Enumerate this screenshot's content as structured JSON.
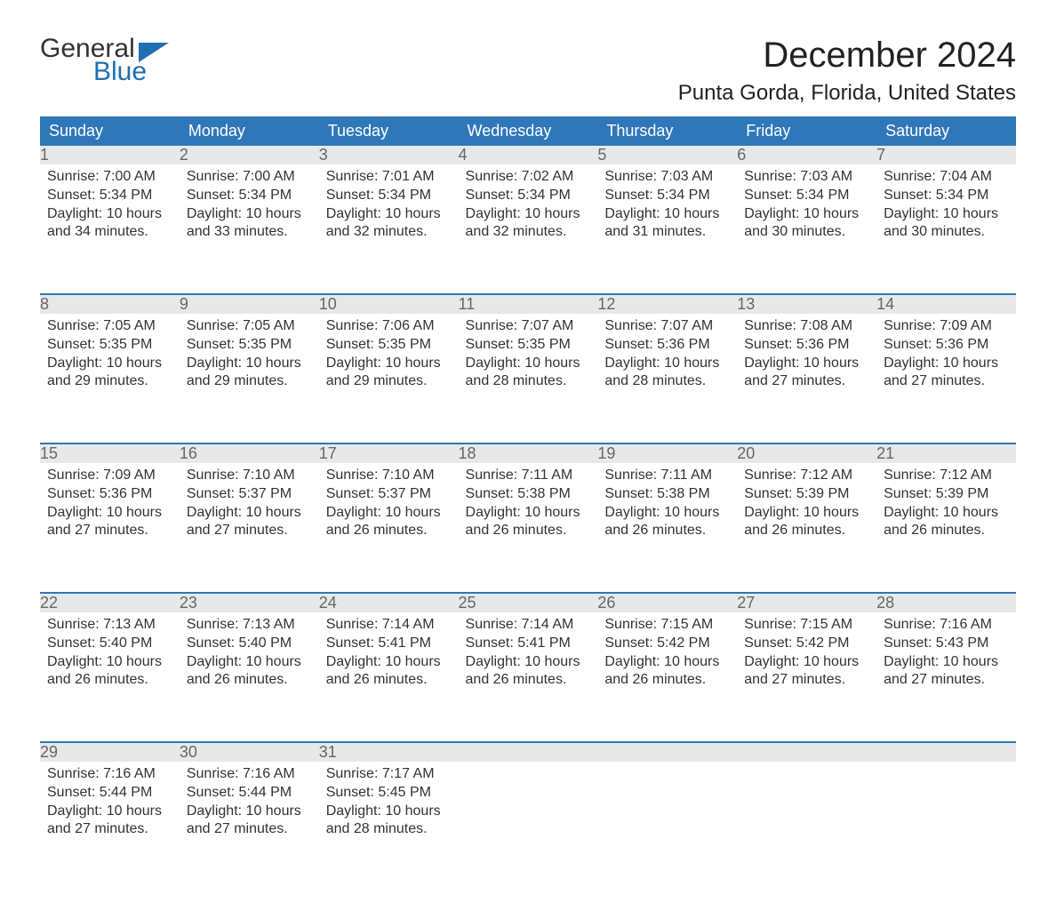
{
  "logo": {
    "word1": "General",
    "word2": "Blue",
    "flag_color": "#1f6fb2"
  },
  "title": "December 2024",
  "location": "Punta Gorda, Florida, United States",
  "colors": {
    "header_bg": "#2f77b9",
    "header_text": "#ffffff",
    "daynum_bg": "#e8e8e8",
    "daynum_text": "#666666",
    "body_text": "#333333",
    "page_bg": "#ffffff",
    "rule": "#2f77b9"
  },
  "typography": {
    "month_title_pt": 40,
    "location_pt": 24,
    "weekday_pt": 18,
    "daynum_pt": 18,
    "body_pt": 16,
    "logo_pt": 30
  },
  "weekdays": [
    "Sunday",
    "Monday",
    "Tuesday",
    "Wednesday",
    "Thursday",
    "Friday",
    "Saturday"
  ],
  "weeks": [
    [
      {
        "n": "1",
        "sunrise": "Sunrise: 7:00 AM",
        "sunset": "Sunset: 5:34 PM",
        "dl1": "Daylight: 10 hours",
        "dl2": "and 34 minutes."
      },
      {
        "n": "2",
        "sunrise": "Sunrise: 7:00 AM",
        "sunset": "Sunset: 5:34 PM",
        "dl1": "Daylight: 10 hours",
        "dl2": "and 33 minutes."
      },
      {
        "n": "3",
        "sunrise": "Sunrise: 7:01 AM",
        "sunset": "Sunset: 5:34 PM",
        "dl1": "Daylight: 10 hours",
        "dl2": "and 32 minutes."
      },
      {
        "n": "4",
        "sunrise": "Sunrise: 7:02 AM",
        "sunset": "Sunset: 5:34 PM",
        "dl1": "Daylight: 10 hours",
        "dl2": "and 32 minutes."
      },
      {
        "n": "5",
        "sunrise": "Sunrise: 7:03 AM",
        "sunset": "Sunset: 5:34 PM",
        "dl1": "Daylight: 10 hours",
        "dl2": "and 31 minutes."
      },
      {
        "n": "6",
        "sunrise": "Sunrise: 7:03 AM",
        "sunset": "Sunset: 5:34 PM",
        "dl1": "Daylight: 10 hours",
        "dl2": "and 30 minutes."
      },
      {
        "n": "7",
        "sunrise": "Sunrise: 7:04 AM",
        "sunset": "Sunset: 5:34 PM",
        "dl1": "Daylight: 10 hours",
        "dl2": "and 30 minutes."
      }
    ],
    [
      {
        "n": "8",
        "sunrise": "Sunrise: 7:05 AM",
        "sunset": "Sunset: 5:35 PM",
        "dl1": "Daylight: 10 hours",
        "dl2": "and 29 minutes."
      },
      {
        "n": "9",
        "sunrise": "Sunrise: 7:05 AM",
        "sunset": "Sunset: 5:35 PM",
        "dl1": "Daylight: 10 hours",
        "dl2": "and 29 minutes."
      },
      {
        "n": "10",
        "sunrise": "Sunrise: 7:06 AM",
        "sunset": "Sunset: 5:35 PM",
        "dl1": "Daylight: 10 hours",
        "dl2": "and 29 minutes."
      },
      {
        "n": "11",
        "sunrise": "Sunrise: 7:07 AM",
        "sunset": "Sunset: 5:35 PM",
        "dl1": "Daylight: 10 hours",
        "dl2": "and 28 minutes."
      },
      {
        "n": "12",
        "sunrise": "Sunrise: 7:07 AM",
        "sunset": "Sunset: 5:36 PM",
        "dl1": "Daylight: 10 hours",
        "dl2": "and 28 minutes."
      },
      {
        "n": "13",
        "sunrise": "Sunrise: 7:08 AM",
        "sunset": "Sunset: 5:36 PM",
        "dl1": "Daylight: 10 hours",
        "dl2": "and 27 minutes."
      },
      {
        "n": "14",
        "sunrise": "Sunrise: 7:09 AM",
        "sunset": "Sunset: 5:36 PM",
        "dl1": "Daylight: 10 hours",
        "dl2": "and 27 minutes."
      }
    ],
    [
      {
        "n": "15",
        "sunrise": "Sunrise: 7:09 AM",
        "sunset": "Sunset: 5:36 PM",
        "dl1": "Daylight: 10 hours",
        "dl2": "and 27 minutes."
      },
      {
        "n": "16",
        "sunrise": "Sunrise: 7:10 AM",
        "sunset": "Sunset: 5:37 PM",
        "dl1": "Daylight: 10 hours",
        "dl2": "and 27 minutes."
      },
      {
        "n": "17",
        "sunrise": "Sunrise: 7:10 AM",
        "sunset": "Sunset: 5:37 PM",
        "dl1": "Daylight: 10 hours",
        "dl2": "and 26 minutes."
      },
      {
        "n": "18",
        "sunrise": "Sunrise: 7:11 AM",
        "sunset": "Sunset: 5:38 PM",
        "dl1": "Daylight: 10 hours",
        "dl2": "and 26 minutes."
      },
      {
        "n": "19",
        "sunrise": "Sunrise: 7:11 AM",
        "sunset": "Sunset: 5:38 PM",
        "dl1": "Daylight: 10 hours",
        "dl2": "and 26 minutes."
      },
      {
        "n": "20",
        "sunrise": "Sunrise: 7:12 AM",
        "sunset": "Sunset: 5:39 PM",
        "dl1": "Daylight: 10 hours",
        "dl2": "and 26 minutes."
      },
      {
        "n": "21",
        "sunrise": "Sunrise: 7:12 AM",
        "sunset": "Sunset: 5:39 PM",
        "dl1": "Daylight: 10 hours",
        "dl2": "and 26 minutes."
      }
    ],
    [
      {
        "n": "22",
        "sunrise": "Sunrise: 7:13 AM",
        "sunset": "Sunset: 5:40 PM",
        "dl1": "Daylight: 10 hours",
        "dl2": "and 26 minutes."
      },
      {
        "n": "23",
        "sunrise": "Sunrise: 7:13 AM",
        "sunset": "Sunset: 5:40 PM",
        "dl1": "Daylight: 10 hours",
        "dl2": "and 26 minutes."
      },
      {
        "n": "24",
        "sunrise": "Sunrise: 7:14 AM",
        "sunset": "Sunset: 5:41 PM",
        "dl1": "Daylight: 10 hours",
        "dl2": "and 26 minutes."
      },
      {
        "n": "25",
        "sunrise": "Sunrise: 7:14 AM",
        "sunset": "Sunset: 5:41 PM",
        "dl1": "Daylight: 10 hours",
        "dl2": "and 26 minutes."
      },
      {
        "n": "26",
        "sunrise": "Sunrise: 7:15 AM",
        "sunset": "Sunset: 5:42 PM",
        "dl1": "Daylight: 10 hours",
        "dl2": "and 26 minutes."
      },
      {
        "n": "27",
        "sunrise": "Sunrise: 7:15 AM",
        "sunset": "Sunset: 5:42 PM",
        "dl1": "Daylight: 10 hours",
        "dl2": "and 27 minutes."
      },
      {
        "n": "28",
        "sunrise": "Sunrise: 7:16 AM",
        "sunset": "Sunset: 5:43 PM",
        "dl1": "Daylight: 10 hours",
        "dl2": "and 27 minutes."
      }
    ],
    [
      {
        "n": "29",
        "sunrise": "Sunrise: 7:16 AM",
        "sunset": "Sunset: 5:44 PM",
        "dl1": "Daylight: 10 hours",
        "dl2": "and 27 minutes."
      },
      {
        "n": "30",
        "sunrise": "Sunrise: 7:16 AM",
        "sunset": "Sunset: 5:44 PM",
        "dl1": "Daylight: 10 hours",
        "dl2": "and 27 minutes."
      },
      {
        "n": "31",
        "sunrise": "Sunrise: 7:17 AM",
        "sunset": "Sunset: 5:45 PM",
        "dl1": "Daylight: 10 hours",
        "dl2": "and 28 minutes."
      },
      null,
      null,
      null,
      null
    ]
  ]
}
